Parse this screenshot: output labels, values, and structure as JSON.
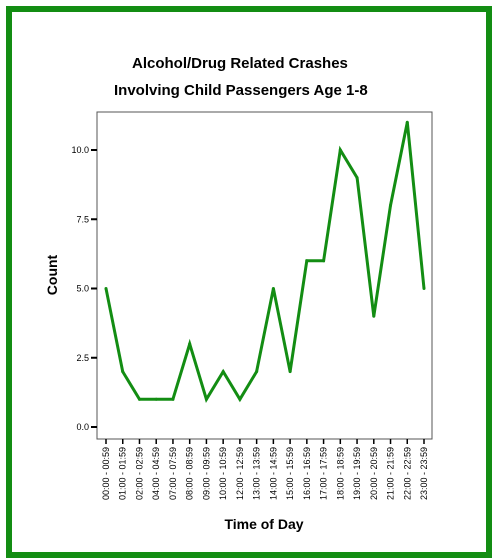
{
  "chart_data": {
    "type": "line",
    "title_line1": "Alcohol/Drug Related Crashes",
    "title_line2": "Involving Child Passengers Age 1-8",
    "xlabel": "Time of Day",
    "ylabel": "Count",
    "categories": [
      "00:00 - 00:59",
      "01:00 - 01:59",
      "02:00 - 02:59",
      "04:00 - 04:59",
      "07:00 - 07:59",
      "08:00 - 08:59",
      "09:00 - 09:59",
      "10:00 - 10:59",
      "12:00 - 12:59",
      "13:00 - 13:59",
      "14:00 - 14:59",
      "15:00 - 15:59",
      "16:00 - 16:59",
      "17:00 - 17:59",
      "18:00 - 18:59",
      "19:00 - 19:59",
      "20:00 - 20:59",
      "21:00 - 21:59",
      "22:00 - 22:59",
      "23:00 - 23:59"
    ],
    "values": [
      5,
      2,
      1,
      1,
      1,
      3,
      1,
      2,
      1,
      2,
      5,
      2,
      6,
      6,
      10,
      9,
      4,
      8,
      11,
      5
    ],
    "yticks": [
      "0.0",
      "2.5",
      "5.0",
      "7.5",
      "10.0"
    ],
    "ylim": [
      0,
      11.25
    ],
    "line_color": "#138d13",
    "frame_color": "#138d13",
    "grid": false,
    "legend": "none"
  }
}
